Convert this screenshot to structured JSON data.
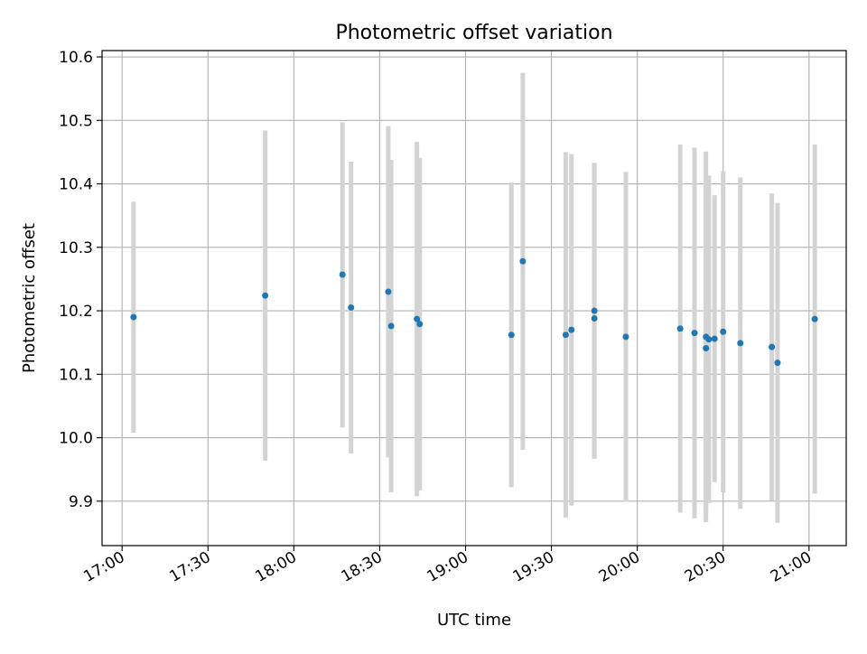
{
  "chart_data": {
    "type": "scatter",
    "title": "Photometric offset variation",
    "xlabel": "UTC time",
    "ylabel": "Photometric offset",
    "xlim": [
      "16:53",
      "21:13"
    ],
    "ylim": [
      9.83,
      10.61
    ],
    "x_ticks": [
      "17:00",
      "17:30",
      "18:00",
      "18:30",
      "19:00",
      "19:30",
      "20:00",
      "20:30",
      "21:00"
    ],
    "y_ticks": [
      9.9,
      10.0,
      10.1,
      10.2,
      10.3,
      10.4,
      10.5,
      10.6
    ],
    "grid": true,
    "colors": {
      "points": "#1f77b4",
      "error_bars": "#d3d3d3",
      "grid": "#b0b0b0"
    },
    "points": [
      {
        "time": "17:04",
        "y": 10.19,
        "lo": 10.008,
        "hi": 10.372
      },
      {
        "time": "17:50",
        "y": 10.224,
        "lo": 9.964,
        "hi": 10.484
      },
      {
        "time": "18:17",
        "y": 10.257,
        "lo": 10.016,
        "hi": 10.497
      },
      {
        "time": "18:20",
        "y": 10.205,
        "lo": 9.975,
        "hi": 10.435
      },
      {
        "time": "18:33",
        "y": 10.23,
        "lo": 9.969,
        "hi": 10.491
      },
      {
        "time": "18:34",
        "y": 10.176,
        "lo": 9.914,
        "hi": 10.438
      },
      {
        "time": "18:43",
        "y": 10.187,
        "lo": 9.908,
        "hi": 10.466
      },
      {
        "time": "18:44",
        "y": 10.179,
        "lo": 9.917,
        "hi": 10.441
      },
      {
        "time": "19:16",
        "y": 10.162,
        "lo": 9.922,
        "hi": 10.402
      },
      {
        "time": "19:20",
        "y": 10.278,
        "lo": 9.981,
        "hi": 10.575
      },
      {
        "time": "19:35",
        "y": 10.162,
        "lo": 9.874,
        "hi": 10.45
      },
      {
        "time": "19:37",
        "y": 10.17,
        "lo": 9.893,
        "hi": 10.447
      },
      {
        "time": "19:45",
        "y": 10.2,
        "lo": 9.967,
        "hi": 10.433
      },
      {
        "time": "19:45",
        "y": 10.188,
        "lo": 9.967,
        "hi": 10.433
      },
      {
        "time": "19:56",
        "y": 10.159,
        "lo": 9.899,
        "hi": 10.419
      },
      {
        "time": "20:15",
        "y": 10.172,
        "lo": 9.882,
        "hi": 10.462
      },
      {
        "time": "20:20",
        "y": 10.165,
        "lo": 9.873,
        "hi": 10.457
      },
      {
        "time": "20:24",
        "y": 10.159,
        "lo": 9.867,
        "hi": 10.451
      },
      {
        "time": "20:24",
        "y": 10.141,
        "lo": 9.882,
        "hi": 10.4
      },
      {
        "time": "20:25",
        "y": 10.155,
        "lo": 9.897,
        "hi": 10.413
      },
      {
        "time": "20:27",
        "y": 10.156,
        "lo": 9.93,
        "hi": 10.382
      },
      {
        "time": "20:30",
        "y": 10.167,
        "lo": 9.914,
        "hi": 10.42
      },
      {
        "time": "20:36",
        "y": 10.149,
        "lo": 9.888,
        "hi": 10.41
      },
      {
        "time": "20:47",
        "y": 10.143,
        "lo": 9.901,
        "hi": 10.385
      },
      {
        "time": "20:49",
        "y": 10.118,
        "lo": 9.866,
        "hi": 10.37
      },
      {
        "time": "21:02",
        "y": 10.187,
        "lo": 9.912,
        "hi": 10.462
      }
    ]
  }
}
